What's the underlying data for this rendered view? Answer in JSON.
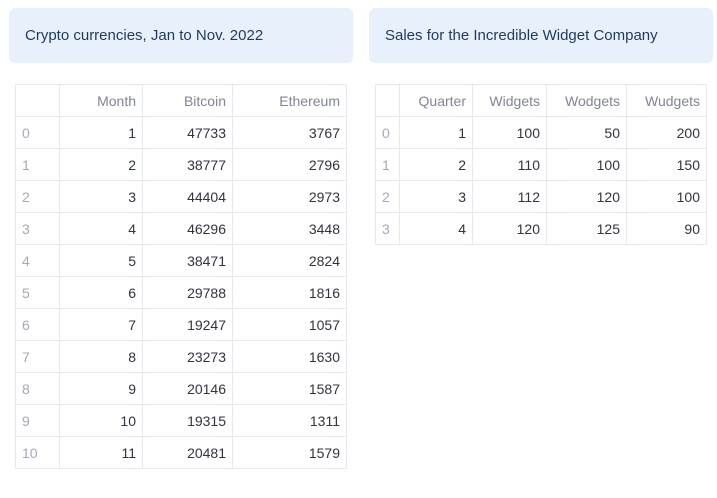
{
  "crypto": {
    "title": "Crypto currencies, Jan to Nov. 2022",
    "columns": [
      "",
      "Month",
      "Bitcoin",
      "Ethereum"
    ],
    "rows": [
      {
        "index": "0",
        "month": "1",
        "bitcoin": "47733",
        "ethereum": "3767"
      },
      {
        "index": "1",
        "month": "2",
        "bitcoin": "38777",
        "ethereum": "2796"
      },
      {
        "index": "2",
        "month": "3",
        "bitcoin": "44404",
        "ethereum": "2973"
      },
      {
        "index": "3",
        "month": "4",
        "bitcoin": "46296",
        "ethereum": "3448"
      },
      {
        "index": "4",
        "month": "5",
        "bitcoin": "38471",
        "ethereum": "2824"
      },
      {
        "index": "5",
        "month": "6",
        "bitcoin": "29788",
        "ethereum": "1816"
      },
      {
        "index": "6",
        "month": "7",
        "bitcoin": "19247",
        "ethereum": "1057"
      },
      {
        "index": "7",
        "month": "8",
        "bitcoin": "23273",
        "ethereum": "1630"
      },
      {
        "index": "8",
        "month": "9",
        "bitcoin": "20146",
        "ethereum": "1587"
      },
      {
        "index": "9",
        "month": "10",
        "bitcoin": "19315",
        "ethereum": "1311"
      },
      {
        "index": "10",
        "month": "11",
        "bitcoin": "20481",
        "ethereum": "1579"
      }
    ]
  },
  "sales": {
    "title": "Sales for the Incredible Widget Company",
    "columns": [
      "",
      "Quarter",
      "Widgets",
      "Wodgets",
      "Wudgets"
    ],
    "rows": [
      {
        "index": "0",
        "quarter": "1",
        "widgets": "100",
        "wodgets": "50",
        "wudgets": "200"
      },
      {
        "index": "1",
        "quarter": "2",
        "widgets": "110",
        "wodgets": "100",
        "wudgets": "150"
      },
      {
        "index": "2",
        "quarter": "3",
        "widgets": "112",
        "wodgets": "120",
        "wudgets": "100"
      },
      {
        "index": "3",
        "quarter": "4",
        "widgets": "120",
        "wodgets": "125",
        "wudgets": "90"
      }
    ]
  },
  "colors": {
    "info_bg": "#e8f1fb",
    "info_text": "#1f3a5c",
    "grid": "#e6e9ef",
    "header_text": "#808495",
    "index_text": "#a3a8b8"
  }
}
